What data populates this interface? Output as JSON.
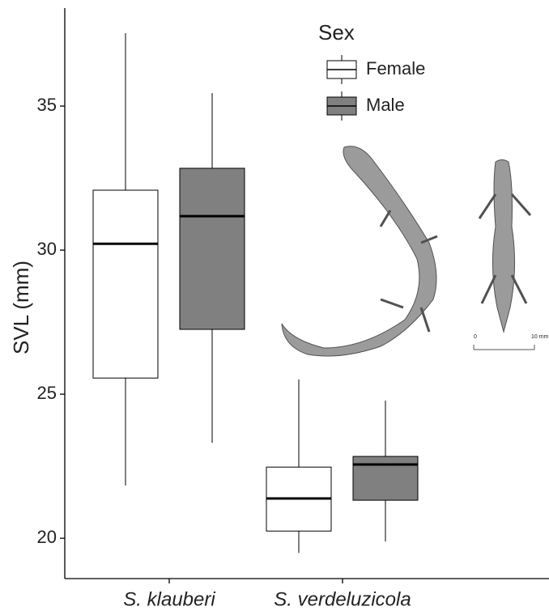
{
  "chart_data": {
    "type": "boxplot",
    "y_label": "SVL (mm)",
    "categories": [
      "S. klauberi",
      "S. verdeluzicola"
    ],
    "legend_title": "Sex",
    "series": [
      {
        "name": "Female",
        "color": "#ffffff",
        "whisker_low": [
          21.83,
          19.49
        ],
        "q1": [
          25.56,
          20.25
        ],
        "median": [
          30.22,
          21.38
        ],
        "q3": [
          32.08,
          22.47
        ],
        "whisker_high": [
          37.53,
          25.51
        ]
      },
      {
        "name": "Male",
        "color": "#808080",
        "whisker_low": [
          23.31,
          19.89
        ],
        "q1": [
          27.25,
          21.32
        ],
        "median": [
          31.18,
          22.56
        ],
        "q3": [
          32.84,
          22.84
        ],
        "whisker_high": [
          35.45,
          24.78
        ]
      }
    ],
    "ylim": [
      18.6,
      38.4
    ],
    "yticks": [
      20,
      25,
      30,
      35
    ],
    "scale_bar": {
      "start": "0",
      "end": "10 mm"
    }
  }
}
